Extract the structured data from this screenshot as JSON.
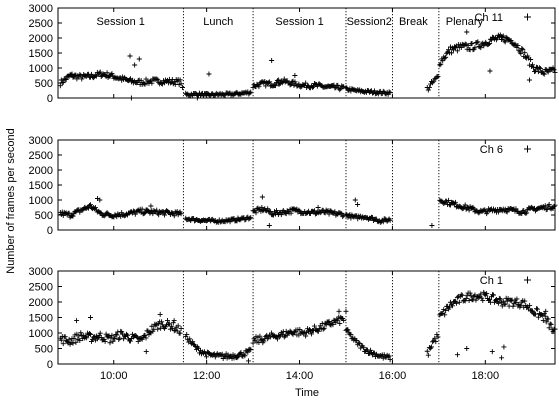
{
  "ylabel": "Number of frames per second",
  "xlabel": "Time",
  "xticks": [
    "10:00",
    "12:00",
    "14:00",
    "16:00",
    "18:00"
  ],
  "chart_data": [
    {
      "type": "scatter",
      "legend": "Ch 11",
      "ylim": [
        0,
        3000
      ],
      "xlim": [
        8.8,
        19.5
      ],
      "yticks": [
        0,
        500,
        1000,
        1500,
        2000,
        2500,
        3000
      ],
      "xticks": [
        10,
        12,
        14,
        16,
        18
      ],
      "boundaries": [
        11.5,
        13,
        15,
        16,
        17
      ],
      "sessions": [
        {
          "label": "Session 1",
          "x": 10.15
        },
        {
          "label": "Lunch",
          "x": 12.25
        },
        {
          "label": "Session 1",
          "x": 14.0
        },
        {
          "label": "Session2",
          "x": 15.5
        },
        {
          "label": "Break",
          "x": 16.45
        },
        {
          "label": "Plenary",
          "x": 17.55
        }
      ],
      "segments": [
        {
          "x0": 8.85,
          "x1": 11.45,
          "y": [
            500,
            750,
            700,
            720,
            800,
            750,
            650,
            560,
            520,
            560,
            560,
            550,
            530
          ],
          "spread": 90
        },
        {
          "x0": 11.55,
          "x1": 12.95,
          "y": [
            110,
            130,
            100,
            120,
            120,
            150,
            190
          ],
          "spread": 50
        },
        {
          "x0": 13.0,
          "x1": 14.95,
          "y": [
            400,
            480,
            470,
            560,
            480,
            420,
            420,
            380,
            350,
            340
          ],
          "spread": 80
        },
        {
          "x0": 15.0,
          "x1": 15.95,
          "y": [
            300,
            250,
            220,
            200,
            180,
            170
          ],
          "spread": 50
        },
        {
          "x0": 16.75,
          "x1": 16.98,
          "y": [
            300,
            500,
            700
          ],
          "spread": 100
        },
        {
          "x0": 17.02,
          "x1": 19.5,
          "y": [
            1200,
            1600,
            1700,
            1700,
            1800,
            1950,
            2000,
            1900,
            1500,
            1000,
            850,
            900
          ],
          "spread": 120
        }
      ],
      "outliers": [
        [
          10.35,
          1400
        ],
        [
          10.55,
          1300
        ],
        [
          10.45,
          1100
        ],
        [
          10.38,
          0
        ],
        [
          11.48,
          350
        ],
        [
          11.8,
          0
        ],
        [
          12.05,
          800
        ],
        [
          13.4,
          1250
        ],
        [
          13.55,
          600
        ],
        [
          13.9,
          750
        ],
        [
          17.6,
          2200
        ],
        [
          18.1,
          900
        ],
        [
          18.35,
          1950
        ],
        [
          18.95,
          600
        ]
      ]
    },
    {
      "type": "scatter",
      "legend": "Ch 6",
      "ylim": [
        0,
        3000
      ],
      "xlim": [
        8.8,
        19.5
      ],
      "yticks": [
        0,
        500,
        1000,
        1500,
        2000,
        2500,
        3000
      ],
      "xticks": [
        10,
        12,
        14,
        16,
        18
      ],
      "boundaries": [
        11.5,
        13,
        15,
        16,
        17
      ],
      "segments": [
        {
          "x0": 8.85,
          "x1": 11.45,
          "y": [
            550,
            500,
            650,
            800,
            550,
            500,
            520,
            560,
            620,
            600,
            580,
            560,
            530
          ],
          "spread": 80
        },
        {
          "x0": 11.55,
          "x1": 12.95,
          "y": [
            380,
            340,
            310,
            300,
            320,
            360,
            420
          ],
          "spread": 50
        },
        {
          "x0": 13.0,
          "x1": 14.95,
          "y": [
            600,
            700,
            550,
            600,
            650,
            620,
            580,
            600,
            550,
            520
          ],
          "spread": 80
        },
        {
          "x0": 15.0,
          "x1": 15.95,
          "y": [
            500,
            420,
            450,
            380,
            300,
            350
          ],
          "spread": 60
        },
        {
          "x0": 17.02,
          "x1": 19.5,
          "y": [
            1000,
            900,
            800,
            700,
            600,
            650,
            700,
            650,
            620,
            700,
            750,
            800
          ],
          "spread": 80
        }
      ],
      "outliers": [
        [
          9.65,
          1050
        ],
        [
          9.7,
          1000
        ],
        [
          13.2,
          1100
        ],
        [
          13.35,
          150
        ],
        [
          15.2,
          1000
        ],
        [
          15.25,
          850
        ],
        [
          16.85,
          150
        ],
        [
          10.8,
          800
        ],
        [
          14.4,
          750
        ]
      ]
    },
    {
      "type": "scatter",
      "legend": "Ch 1",
      "ylim": [
        0,
        3000
      ],
      "xlim": [
        8.8,
        19.5
      ],
      "yticks": [
        0,
        500,
        1000,
        1500,
        2000,
        2500,
        3000
      ],
      "xticks": [
        10,
        12,
        14,
        16,
        18
      ],
      "boundaries": [
        11.5,
        13,
        15,
        16,
        17
      ],
      "segments": [
        {
          "x0": 8.85,
          "x1": 11.45,
          "y": [
            800,
            750,
            900,
            850,
            900,
            800,
            950,
            850,
            750,
            1100,
            1300,
            1250,
            1050
          ],
          "spread": 140
        },
        {
          "x0": 11.55,
          "x1": 12.95,
          "y": [
            900,
            500,
            300,
            250,
            250,
            300,
            400
          ],
          "spread": 90
        },
        {
          "x0": 13.0,
          "x1": 14.95,
          "y": [
            750,
            800,
            900,
            950,
            1050,
            1000,
            1100,
            1200,
            1350,
            1450
          ],
          "spread": 120
        },
        {
          "x0": 15.0,
          "x1": 15.95,
          "y": [
            1100,
            750,
            500,
            350,
            250,
            200
          ],
          "spread": 80
        },
        {
          "x0": 16.75,
          "x1": 16.98,
          "y": [
            300,
            700,
            900
          ],
          "spread": 120
        },
        {
          "x0": 17.02,
          "x1": 19.5,
          "y": [
            1500,
            1900,
            2100,
            2200,
            2200,
            2100,
            2000,
            2000,
            1950,
            1700,
            1500,
            1000
          ],
          "spread": 140
        }
      ],
      "outliers": [
        [
          9.2,
          1400
        ],
        [
          9.5,
          1500
        ],
        [
          10.7,
          400
        ],
        [
          11.0,
          1600
        ],
        [
          11.3,
          1400
        ],
        [
          12.9,
          100
        ],
        [
          15.0,
          1700
        ],
        [
          17.4,
          300
        ],
        [
          17.6,
          500
        ],
        [
          18.15,
          400
        ],
        [
          18.35,
          200
        ],
        [
          18.4,
          550
        ],
        [
          19.3,
          1700
        ],
        [
          14.85,
          1700
        ]
      ]
    }
  ]
}
